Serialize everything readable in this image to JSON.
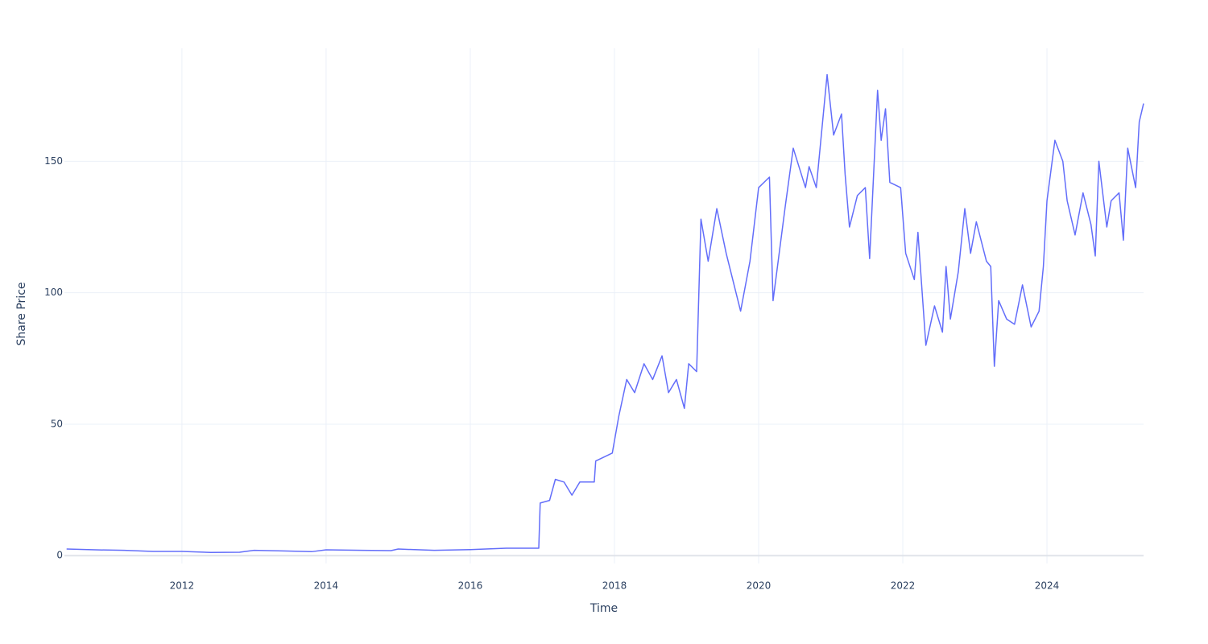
{
  "chart_data": {
    "type": "line",
    "x_label": "Time",
    "y_label": "Share Price",
    "color": "#636efa",
    "grid": true,
    "x": [
      2010.4,
      2010.8,
      2011.2,
      2011.6,
      2012.0,
      2012.4,
      2012.8,
      2013.0,
      2013.4,
      2013.8,
      2014.0,
      2014.5,
      2014.9,
      2015.0,
      2015.5,
      2016.0,
      2016.5,
      2016.95,
      2016.97,
      2017.1,
      2017.18,
      2017.3,
      2017.41,
      2017.52,
      2017.72,
      2017.74,
      2017.97,
      2018.06,
      2018.17,
      2018.28,
      2018.41,
      2018.53,
      2018.66,
      2018.75,
      2018.86,
      2018.97,
      2019.03,
      2019.14,
      2019.2,
      2019.3,
      2019.42,
      2019.55,
      2019.75,
      2019.88,
      2020.0,
      2020.15,
      2020.2,
      2020.37,
      2020.48,
      2020.65,
      2020.7,
      2020.8,
      2020.95,
      2021.04,
      2021.15,
      2021.2,
      2021.26,
      2021.37,
      2021.48,
      2021.54,
      2021.65,
      2021.7,
      2021.76,
      2021.82,
      2021.97,
      2022.04,
      2022.16,
      2022.21,
      2022.32,
      2022.44,
      2022.55,
      2022.6,
      2022.66,
      2022.77,
      2022.86,
      2022.94,
      2023.02,
      2023.16,
      2023.22,
      2023.27,
      2023.33,
      2023.44,
      2023.55,
      2023.66,
      2023.78,
      2023.89,
      2023.95,
      2024.0,
      2024.11,
      2024.22,
      2024.28,
      2024.39,
      2024.5,
      2024.61,
      2024.67,
      2024.72,
      2024.83,
      2024.89,
      2025.0,
      2025.06,
      2025.12,
      2025.23,
      2025.28,
      2025.34
    ],
    "values": [
      2.5,
      2.2,
      2.0,
      1.6,
      1.6,
      1.2,
      1.3,
      2.0,
      1.8,
      1.5,
      2.2,
      2.0,
      1.9,
      2.5,
      2.0,
      2.3,
      2.8,
      2.8,
      20,
      21,
      29,
      28,
      23,
      28,
      28,
      36,
      39,
      53,
      67,
      62,
      73,
      67,
      76,
      62,
      67,
      56,
      73,
      70,
      128,
      112,
      132,
      115,
      93,
      112,
      140,
      144,
      97,
      133,
      155,
      140,
      148,
      140,
      183,
      160,
      168,
      145,
      125,
      137,
      140,
      113,
      177,
      158,
      170,
      142,
      140,
      115,
      105,
      123,
      80,
      95,
      85,
      110,
      90,
      108,
      132,
      115,
      127,
      112,
      110,
      72,
      97,
      90,
      88,
      103,
      87,
      93,
      110,
      135,
      158,
      150,
      135,
      122,
      138,
      126,
      114,
      150,
      125,
      135,
      138,
      120,
      155,
      140,
      165,
      172
    ],
    "xlim": [
      2010.37,
      2025.34
    ],
    "xticks": [
      2012,
      2014,
      2016,
      2018,
      2020,
      2022,
      2024
    ],
    "ylim": [
      -3,
      193
    ],
    "yticks": [
      0,
      50,
      100,
      150
    ]
  }
}
